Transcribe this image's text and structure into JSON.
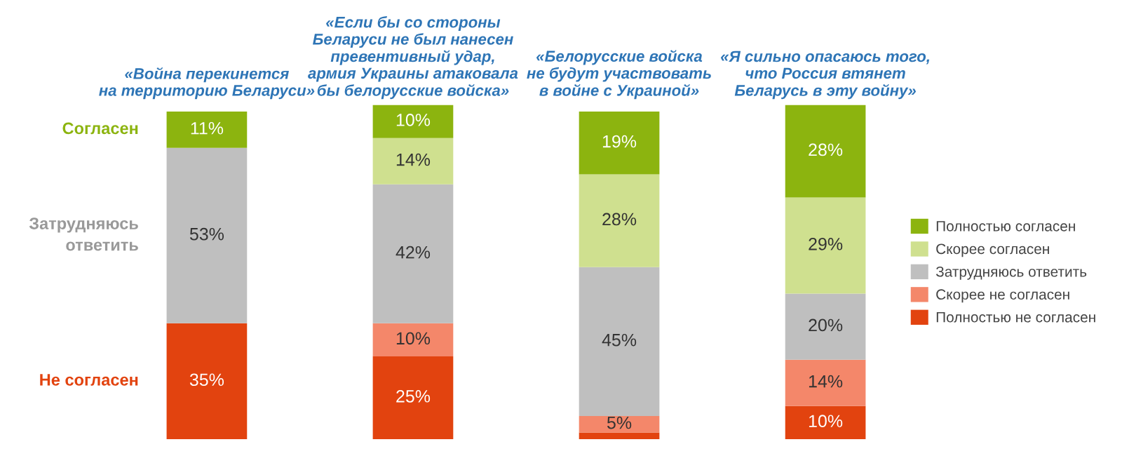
{
  "chart_data": {
    "type": "bar",
    "stacked": true,
    "legend": "right",
    "grid": false,
    "tick_labels": "x",
    "categories": [
      "«Война перекинется\nна территорию Беларуси»",
      "«Если бы со стороны\nБеларуси не был нанесен\nпревентивный удар,\nармия Украины атаковала\nбы белорусские войска»",
      "«Белорусские войска\nне будут участвовать\nв войне с Украиной»",
      "«Я сильно опасаюсь того,\nчто Россия втянет\nБеларусь в эту войну»"
    ],
    "series": [
      {
        "name": "Полностью не согласен",
        "color": "#e2430f",
        "values": [
          35,
          25,
          2,
          10
        ],
        "value_labels": [
          "35%",
          "25%",
          null,
          "10%"
        ]
      },
      {
        "name": "Скорее не согласен",
        "color": "#f4876a",
        "values": [
          null,
          10,
          5,
          14
        ],
        "value_labels": [
          null,
          "10%",
          "5%",
          "14%"
        ]
      },
      {
        "name": "Затрудняюсь ответить",
        "color": "#bfbfbf",
        "values": [
          53,
          42,
          45,
          20
        ],
        "value_labels": [
          "53%",
          "42%",
          "45%",
          "20%"
        ]
      },
      {
        "name": "Скорее согласен",
        "color": "#cfe08f",
        "values": [
          null,
          14,
          28,
          29
        ],
        "value_labels": [
          null,
          "14%",
          "28%",
          "29%"
        ]
      },
      {
        "name": "Полностью согласен",
        "color": "#8cb40f",
        "values": [
          11,
          10,
          19,
          28
        ],
        "value_labels": [
          "11%",
          "10%",
          "19%",
          "28%"
        ]
      }
    ],
    "annotations": [
      "Согласен",
      "Затрудняюсь\nответить",
      "Не согласен"
    ]
  }
}
